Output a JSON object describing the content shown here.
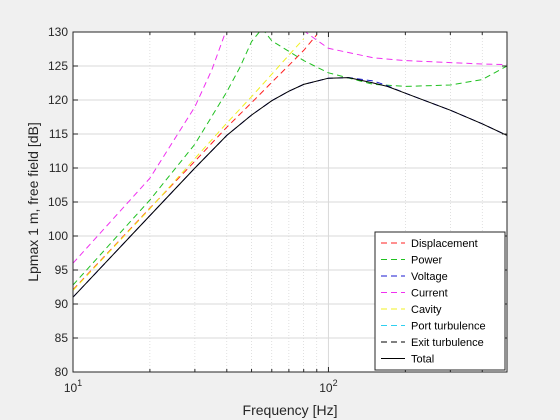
{
  "chart_data": {
    "type": "line",
    "xlabel": "Frequency [Hz]",
    "ylabel": "Lpmax 1 m, free field [dB]",
    "x_scale": "log",
    "xlim": [
      10,
      500
    ],
    "ylim": [
      80,
      130
    ],
    "x_ticks": [
      10,
      100
    ],
    "x_tick_labels": [
      {
        "base": "10",
        "exp": "1"
      },
      {
        "base": "10",
        "exp": "2"
      }
    ],
    "y_ticks": [
      80,
      85,
      90,
      95,
      100,
      105,
      110,
      115,
      120,
      125,
      130
    ],
    "grid": true,
    "minor_grid": true,
    "legend_position": "bottom-right",
    "series": [
      {
        "name": "Displacement",
        "color": "#ff2020",
        "dash": "dashed",
        "x": [
          10,
          20,
          30,
          40,
          50,
          60,
          70,
          80,
          90
        ],
        "y": [
          92.1,
          104.1,
          111.0,
          116.0,
          119.6,
          122.6,
          125.1,
          127.3,
          129.6
        ]
      },
      {
        "name": "Power",
        "color": "#20c020",
        "dash": "dashed",
        "x": [
          10,
          20,
          30,
          40,
          45,
          50,
          55,
          60,
          80,
          100,
          150,
          200,
          300,
          400,
          500
        ],
        "y": [
          92.8,
          105.3,
          113.5,
          121.2,
          124.8,
          128.6,
          130.5,
          128.7,
          125.8,
          124.0,
          122.3,
          122.0,
          122.2,
          123.0,
          125.0
        ]
      },
      {
        "name": "Voltage",
        "color": "#1a1ad0",
        "dash": "dashed",
        "x": [
          10,
          20,
          30,
          40,
          50,
          60,
          70,
          80,
          100,
          120,
          150,
          170,
          200,
          300,
          400,
          500
        ],
        "y": [
          91.0,
          103.0,
          110.0,
          114.8,
          117.8,
          119.9,
          121.3,
          122.3,
          123.2,
          123.3,
          122.8,
          122.1,
          121.0,
          118.5,
          116.5,
          114.8
        ]
      },
      {
        "name": "Current",
        "color": "#f030f0",
        "dash": "dashed",
        "x": [
          10,
          20,
          30,
          35,
          40,
          80,
          90,
          100,
          150,
          200,
          300,
          400,
          500
        ],
        "y": [
          96.0,
          108.5,
          119.0,
          124.5,
          130.5,
          130.2,
          128.8,
          127.6,
          126.2,
          125.8,
          125.5,
          125.3,
          125.2
        ]
      },
      {
        "name": "Cavity",
        "color": "#f0f020",
        "dash": "dashed",
        "x": [
          10,
          20,
          30,
          40,
          50,
          60,
          70,
          80
        ],
        "y": [
          92.0,
          104.0,
          111.4,
          116.6,
          120.5,
          123.8,
          126.6,
          129.0
        ]
      },
      {
        "name": "Port turbulence",
        "color": "#30d0f0",
        "dash": "dashed",
        "x": [],
        "y": []
      },
      {
        "name": "Exit turbulence",
        "color": "#000000",
        "dash": "dashed",
        "x": [],
        "y": []
      },
      {
        "name": "Total",
        "color": "#000000",
        "dash": "solid",
        "x": [
          10,
          20,
          30,
          40,
          50,
          60,
          70,
          80,
          100,
          120,
          150,
          170,
          200,
          300,
          400,
          500
        ],
        "y": [
          91.0,
          103.0,
          110.0,
          114.8,
          117.8,
          119.9,
          121.3,
          122.3,
          123.2,
          123.3,
          122.5,
          122.0,
          121.0,
          118.5,
          116.5,
          114.8
        ]
      }
    ]
  }
}
